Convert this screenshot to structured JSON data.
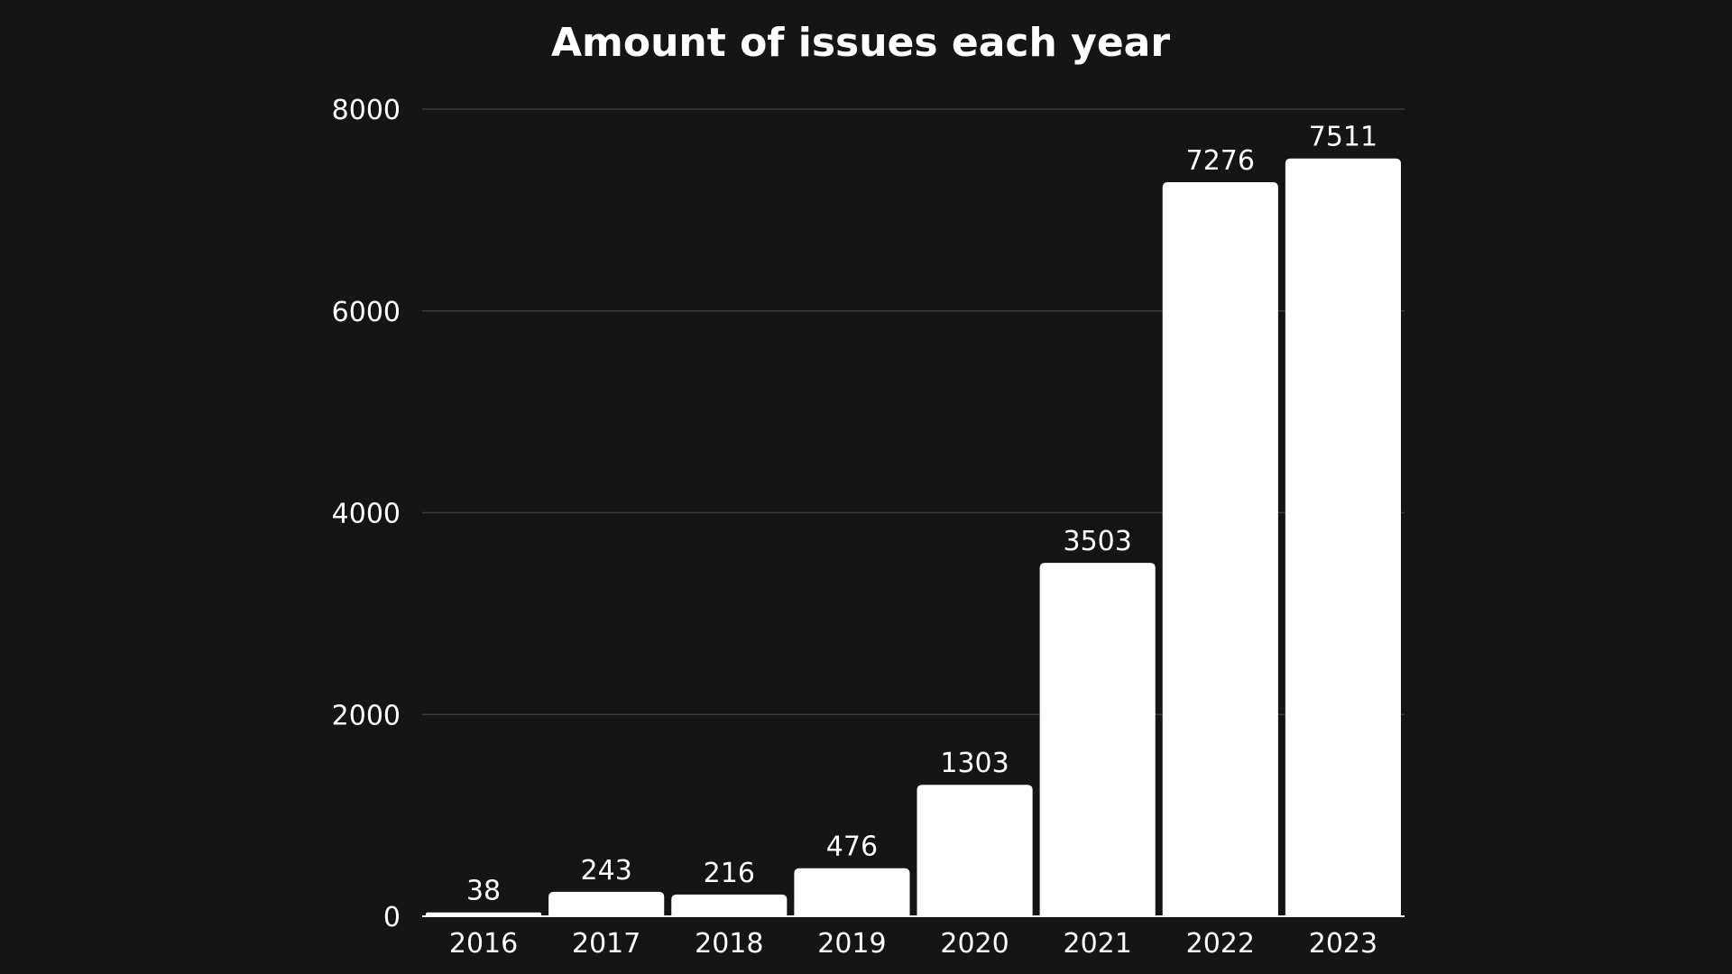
{
  "chart_data": {
    "type": "bar",
    "title": "Amount of issues each year",
    "xlabel": "",
    "ylabel": "",
    "categories": [
      "2016",
      "2017",
      "2018",
      "2019",
      "2020",
      "2021",
      "2022",
      "2023"
    ],
    "values": [
      38,
      243,
      216,
      476,
      1303,
      3503,
      7276,
      7511
    ],
    "data_labels": [
      "38",
      "243",
      "216",
      "476",
      "1303",
      "3503",
      "7276",
      "7511"
    ],
    "ylim": [
      0,
      8000
    ],
    "yticks": [
      0,
      2000,
      4000,
      6000,
      8000
    ],
    "ytick_labels": [
      "0",
      "2000",
      "4000",
      "6000",
      "8000"
    ],
    "grid": true,
    "legend": "none",
    "colors": {
      "background": "#151515",
      "bar": "#ffffff",
      "grid": "#3c3c3c",
      "text": "#ffffff"
    }
  }
}
